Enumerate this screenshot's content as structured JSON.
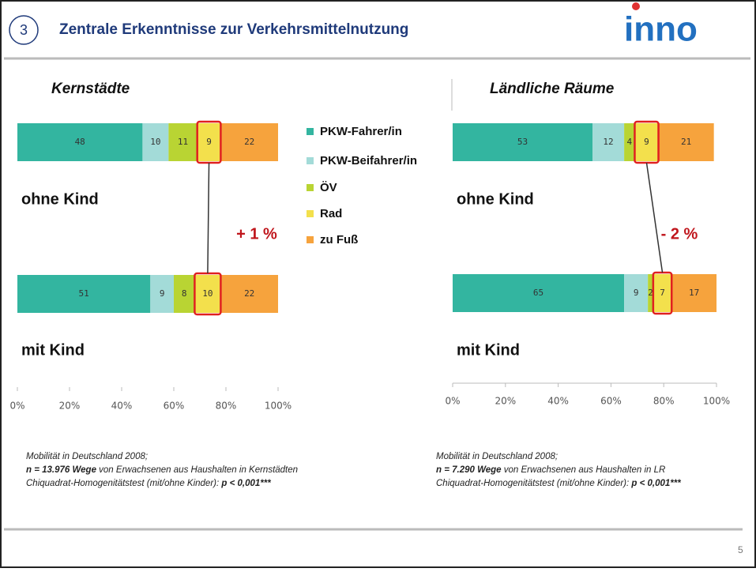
{
  "header": {
    "number": "3",
    "title": "Zentrale Erkenntnisse zur Verkehrsmittelnutzung",
    "logo": "inno"
  },
  "page_number": "5",
  "chart_data": [
    {
      "type": "stacked_bar_h",
      "title": "Kernstädte",
      "categories": [
        "ohne Kind",
        "mit Kind"
      ],
      "series": [
        {
          "name": "PKW-Fahrer/in",
          "color": "#33b5a0",
          "values": [
            48,
            51
          ]
        },
        {
          "name": "PKW-Beifahrer/in",
          "color": "#a3dbd8",
          "values": [
            10,
            9
          ]
        },
        {
          "name": "ÖV",
          "color": "#b9d433",
          "values": [
            11,
            8
          ]
        },
        {
          "name": "Rad",
          "color": "#f3e04c",
          "values": [
            9,
            10
          ]
        },
        {
          "name": "zu Fuß",
          "color": "#f6a33d",
          "values": [
            22,
            22
          ]
        }
      ],
      "xlim": [
        0,
        100
      ],
      "xticks": [
        {
          "value": 0,
          "label": "0%"
        },
        {
          "value": 20,
          "label": "20%"
        },
        {
          "value": 40,
          "label": "40%"
        },
        {
          "value": 60,
          "label": "60%"
        },
        {
          "value": 80,
          "label": "80%"
        },
        {
          "value": 100,
          "label": "100%"
        }
      ],
      "annotation": "+ 1 %",
      "notes": {
        "source": "Mobilität in Deutschland 2008;",
        "n": "n = 13.976 Wege",
        "n_text": " von Erwachsenen aus Haushalten in Kernstädten",
        "test": "Chiquadrat-Homogenitätstest (mit/ohne Kinder): ",
        "p": "p < 0,001***"
      }
    },
    {
      "type": "stacked_bar_h",
      "title": "Ländliche Räume",
      "categories": [
        "ohne Kind",
        "mit Kind"
      ],
      "series": [
        {
          "name": "PKW-Fahrer/in",
          "color": "#33b5a0",
          "values": [
            53,
            65
          ]
        },
        {
          "name": "PKW-Beifahrer/in",
          "color": "#a3dbd8",
          "values": [
            12,
            9
          ]
        },
        {
          "name": "ÖV",
          "color": "#b9d433",
          "values": [
            4,
            2
          ]
        },
        {
          "name": "Rad",
          "color": "#f3e04c",
          "values": [
            9,
            7
          ]
        },
        {
          "name": "zu Fuß",
          "color": "#f6a33d",
          "values": [
            21,
            17
          ]
        }
      ],
      "xlim": [
        0,
        100
      ],
      "xticks": [
        {
          "value": 0,
          "label": "0%"
        },
        {
          "value": 20,
          "label": "20%"
        },
        {
          "value": 40,
          "label": "40%"
        },
        {
          "value": 60,
          "label": "60%"
        },
        {
          "value": 80,
          "label": "80%"
        },
        {
          "value": 100,
          "label": "100%"
        }
      ],
      "annotation": "- 2 %",
      "notes": {
        "source": "Mobilität in Deutschland 2008;",
        "n": "n = 7.290 Wege",
        "n_text": " von Erwachsenen aus Haushalten in LR",
        "test": "Chiquadrat-Homogenitätstest (mit/ohne Kinder): ",
        "p": "p < 0,001***"
      }
    }
  ]
}
